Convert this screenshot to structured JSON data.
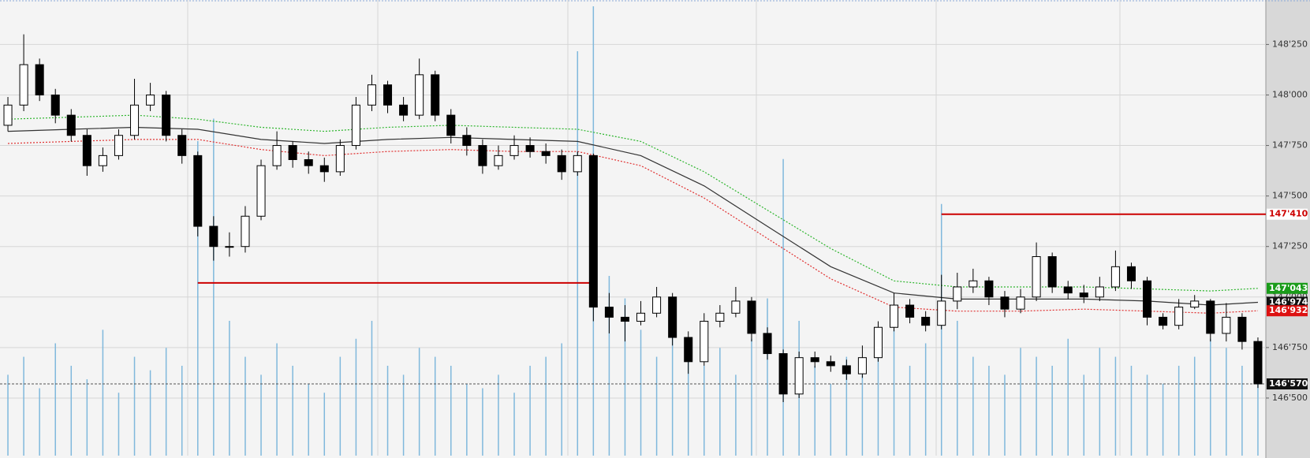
{
  "chart_data": {
    "type": "candlestick",
    "open": [
      147850,
      147950,
      148150,
      148000,
      147900,
      147800,
      147650,
      147700,
      147800,
      147950,
      148000,
      147800,
      147700,
      147350,
      147250,
      147250,
      147400,
      147650,
      147750,
      147680,
      147650,
      147620,
      147750,
      147950,
      148050,
      147950,
      147900,
      148100,
      147900,
      147800,
      147750,
      147650,
      147700,
      147750,
      147720,
      147700,
      147620,
      147700,
      146950,
      146900,
      146880,
      146920,
      147000,
      146800,
      146680,
      146880,
      146920,
      146980,
      146820,
      146720,
      146520,
      146700,
      146680,
      146660,
      146620,
      146700,
      146850,
      146960,
      146900,
      146860,
      146980,
      147050,
      147080,
      147000,
      146940,
      147000,
      147200,
      147050,
      147020,
      147000,
      147050,
      147150,
      147080,
      146900,
      146860,
      146950,
      146980,
      146820,
      146900,
      146780
    ],
    "high": [
      147990,
      148300,
      148180,
      148030,
      147930,
      147830,
      147740,
      147830,
      148080,
      148060,
      148020,
      147830,
      147720,
      147400,
      147320,
      147450,
      147680,
      147820,
      147770,
      147720,
      147690,
      147780,
      147990,
      148100,
      148070,
      147990,
      148180,
      148120,
      147930,
      147840,
      147780,
      147750,
      147800,
      147790,
      147760,
      147730,
      147720,
      147710,
      147020,
      146960,
      146980,
      147050,
      147020,
      146830,
      146920,
      146960,
      147050,
      147000,
      146850,
      146740,
      146730,
      146730,
      146710,
      146690,
      146760,
      146880,
      147020,
      146990,
      146930,
      147110,
      147120,
      147140,
      147100,
      147030,
      147040,
      147270,
      147220,
      147080,
      147060,
      147100,
      147230,
      147170,
      147100,
      146920,
      146990,
      147010,
      146990,
      146970,
      146920,
      146800
    ],
    "low": [
      147820,
      147920,
      147970,
      147860,
      147770,
      147600,
      147620,
      147680,
      147780,
      147920,
      147770,
      147660,
      147300,
      147180,
      147200,
      147220,
      147380,
      147630,
      147640,
      147610,
      147570,
      147600,
      147730,
      147920,
      147910,
      147870,
      147880,
      147870,
      147760,
      147700,
      147610,
      147630,
      147680,
      147690,
      147660,
      147580,
      147600,
      146880,
      146820,
      146780,
      146860,
      146900,
      146760,
      146620,
      146660,
      146850,
      146900,
      146780,
      146690,
      146480,
      146500,
      146650,
      146630,
      146590,
      146600,
      146680,
      146830,
      146870,
      146830,
      146840,
      146940,
      147020,
      146960,
      146900,
      146920,
      146980,
      147020,
      146990,
      146970,
      146980,
      147030,
      147040,
      146860,
      146840,
      146840,
      146940,
      146780,
      146780,
      146740,
      146550
    ],
    "close": [
      147950,
      148150,
      148000,
      147900,
      147800,
      147650,
      147700,
      147800,
      147950,
      148000,
      147800,
      147700,
      147350,
      147250,
      147250,
      147400,
      147650,
      147750,
      147680,
      147650,
      147620,
      147750,
      147950,
      148050,
      147950,
      147900,
      148100,
      147900,
      147800,
      147750,
      147650,
      147700,
      147750,
      147720,
      147700,
      147620,
      147700,
      146950,
      146900,
      146880,
      146920,
      147000,
      146800,
      146680,
      146880,
      146920,
      146980,
      146820,
      146720,
      146520,
      146700,
      146680,
      146660,
      146620,
      146700,
      146850,
      146960,
      146900,
      146860,
      146980,
      147050,
      147080,
      147000,
      146940,
      147000,
      147200,
      147050,
      147020,
      147000,
      147050,
      147150,
      147080,
      146900,
      146860,
      146950,
      146980,
      146820,
      146900,
      146780,
      146570
    ],
    "volume": [
      18,
      22,
      15,
      25,
      20,
      17,
      28,
      14,
      22,
      19,
      24,
      20,
      70,
      75,
      30,
      22,
      18,
      25,
      20,
      16,
      14,
      22,
      26,
      30,
      20,
      18,
      24,
      22,
      20,
      16,
      15,
      18,
      14,
      20,
      22,
      25,
      90,
      100,
      40,
      35,
      28,
      22,
      30,
      25,
      20,
      24,
      18,
      26,
      35,
      66,
      30,
      20,
      16,
      22,
      18,
      24,
      28,
      20,
      25,
      56,
      30,
      22,
      20,
      18,
      24,
      22,
      20,
      26,
      18,
      24,
      22,
      20,
      18,
      16,
      20,
      22,
      26,
      24,
      20,
      18
    ],
    "volume_color": "#7fb8dc",
    "vlim": [
      0,
      100
    ],
    "ylim": [
      146215,
      148470
    ],
    "yticks": [
      {
        "value": 146500,
        "label": "146'500"
      },
      {
        "value": 146750,
        "label": "146'750"
      },
      {
        "value": 147000,
        "label": "147'000"
      },
      {
        "value": 147250,
        "label": "147'250"
      },
      {
        "value": 147500,
        "label": "147'500"
      },
      {
        "value": 147750,
        "label": "147'750"
      },
      {
        "value": 148000,
        "label": "148'000"
      },
      {
        "value": 148250,
        "label": "148'250"
      }
    ],
    "grid": true,
    "overlays": {
      "x": [
        0,
        4,
        8,
        12,
        16,
        20,
        24,
        28,
        32,
        36,
        40,
        44,
        48,
        52,
        56,
        60,
        64,
        68,
        72,
        76,
        79
      ],
      "series": [
        {
          "color": "#2db52d",
          "dotted": true,
          "values": [
            147880,
            147890,
            147900,
            147880,
            147840,
            147820,
            147840,
            147850,
            147840,
            147830,
            147770,
            147620,
            147430,
            147240,
            147080,
            147050,
            147050,
            147050,
            147040,
            147030,
            147043
          ]
        },
        {
          "color": "#333333",
          "dotted": false,
          "values": [
            147820,
            147830,
            147840,
            147830,
            147780,
            147760,
            147780,
            147790,
            147780,
            147770,
            147700,
            147550,
            147350,
            147150,
            147020,
            146990,
            146990,
            146990,
            146980,
            146960,
            146974
          ]
        },
        {
          "color": "#e03030",
          "dotted": true,
          "values": [
            147760,
            147770,
            147780,
            147780,
            147730,
            147700,
            147720,
            147730,
            147720,
            147720,
            147650,
            147490,
            147290,
            147090,
            146950,
            146930,
            146930,
            146940,
            146930,
            146920,
            146932
          ]
        }
      ]
    },
    "levels": [
      {
        "value": 147070,
        "x": [
          12,
          37
        ],
        "color": "#cc0000"
      },
      {
        "value": 147410,
        "x": [
          59,
          79
        ],
        "color": "#cc0000"
      }
    ],
    "current": 146570,
    "price_labels": [
      {
        "value": 147410,
        "label": "147'410",
        "color": "#cc0000",
        "background": "#ffffff"
      },
      {
        "value": 147043,
        "label": "147'043",
        "color": "#ffffff",
        "background": "#1a9c1a"
      },
      {
        "value": 146974,
        "label": "146'974",
        "color": "#ffffff",
        "background": "#111111"
      },
      {
        "value": 146932,
        "label": "146'932",
        "color": "#ffffff",
        "background": "#dd1111"
      },
      {
        "value": 146570,
        "label": "146'570",
        "color": "#ffffff",
        "background": "#111111"
      }
    ]
  }
}
